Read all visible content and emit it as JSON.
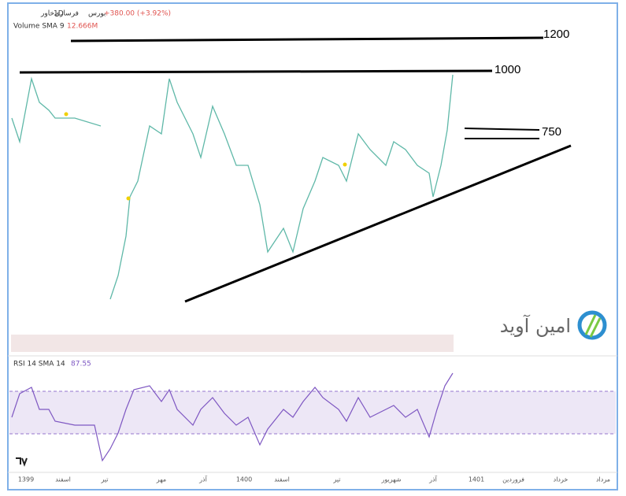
{
  "header": {
    "symbol": "فرسازی‌خاور",
    "exchange": "بورس",
    "interval": "1D",
    "change": "+380.00 (+3.92%)",
    "volume_label": "Volume SMA 9",
    "volume_value": "12.666M"
  },
  "levels": [
    "1200",
    "1000",
    "750"
  ],
  "rsi": {
    "label": "RSI 14 SMA 14",
    "value": "87.55"
  },
  "x_axis": [
    "1399",
    "اسفند",
    "تیر",
    "مهر",
    "آذر",
    "1400",
    "اسفند",
    "تیر",
    "شهریور",
    "آذر",
    "1401",
    "فروردین",
    "خرداد",
    "مرداد"
  ],
  "logo": "امین آوید"
}
